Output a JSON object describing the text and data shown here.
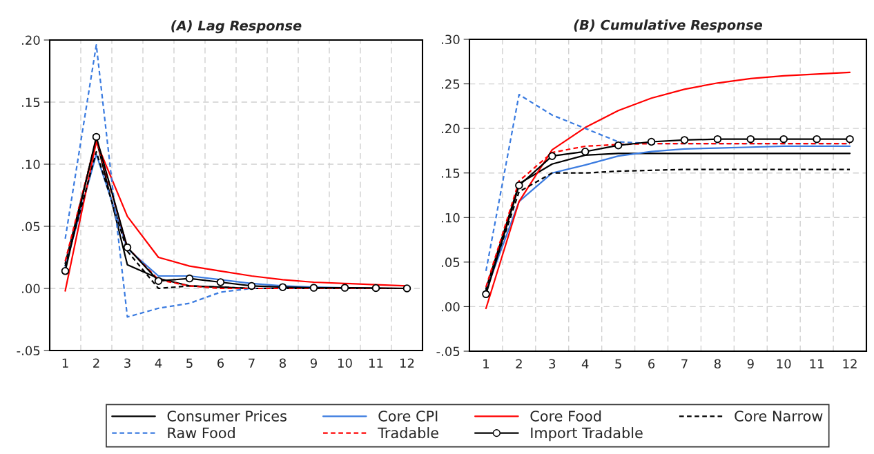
{
  "chart_data": [
    {
      "type": "line",
      "title": "(A) Lag Response",
      "categories": [
        "1",
        "2",
        "3",
        "4",
        "5",
        "6",
        "7",
        "8",
        "9",
        "10",
        "11",
        "12"
      ],
      "ylim": [
        -0.05,
        0.2
      ],
      "yticks": [
        {
          "value": -0.05,
          "label": "-.05"
        },
        {
          "value": 0.0,
          "label": ".00"
        },
        {
          "value": 0.05,
          "label": ".05"
        },
        {
          "value": 0.1,
          "label": ".10"
        },
        {
          "value": 0.15,
          "label": ".15"
        },
        {
          "value": 0.2,
          "label": ".20"
        }
      ],
      "grid": true,
      "legend": "bottom",
      "series": [
        {
          "name": "Consumer Prices",
          "color": "#000000",
          "line_style": "solid",
          "marker": "none",
          "values": [
            0.02,
            0.12,
            0.019,
            0.008,
            0.002,
            0.001,
            0.0,
            0.0,
            0.0,
            0.0,
            0.0,
            0.0
          ]
        },
        {
          "name": "Core CPI",
          "color": "#3a7be0",
          "line_style": "solid",
          "marker": "none",
          "values": [
            0.018,
            0.108,
            0.032,
            0.01,
            0.01,
            0.007,
            0.004,
            0.002,
            0.001,
            0.0005,
            0.0,
            0.0
          ]
        },
        {
          "name": "Core Food",
          "color": "#ff0000",
          "line_style": "solid",
          "marker": "none",
          "values": [
            -0.002,
            0.118,
            0.058,
            0.025,
            0.018,
            0.014,
            0.01,
            0.007,
            0.005,
            0.004,
            0.003,
            0.002
          ]
        },
        {
          "name": "Core Narrow",
          "color": "#000000",
          "line_style": "dashed",
          "marker": "none",
          "values": [
            0.018,
            0.11,
            0.03,
            0.0,
            0.002,
            0.001,
            0.0,
            0.0,
            0.0,
            0.0,
            0.0,
            0.0
          ]
        },
        {
          "name": "Raw Food",
          "color": "#3a7be0",
          "line_style": "dashed",
          "marker": "none",
          "values": [
            0.04,
            0.196,
            -0.023,
            -0.016,
            -0.012,
            -0.003,
            0.0,
            0.0,
            0.0,
            0.0,
            0.0,
            0.0
          ]
        },
        {
          "name": "Tradable",
          "color": "#ff0000",
          "line_style": "dashed",
          "marker": "none",
          "values": [
            0.022,
            0.12,
            0.033,
            0.007,
            0.002,
            0.0,
            0.0,
            0.0,
            0.0,
            0.0,
            0.0,
            0.0
          ]
        },
        {
          "name": "Import Tradable",
          "color": "#000000",
          "line_style": "solid",
          "marker": "circle",
          "values": [
            0.014,
            0.122,
            0.033,
            0.006,
            0.008,
            0.005,
            0.002,
            0.001,
            0.0005,
            0.0005,
            0.0003,
            0.0
          ]
        }
      ]
    },
    {
      "type": "line",
      "title": "(B) Cumulative Response",
      "categories": [
        "1",
        "2",
        "3",
        "4",
        "5",
        "6",
        "7",
        "8",
        "9",
        "10",
        "11",
        "12"
      ],
      "ylim": [
        -0.05,
        0.3
      ],
      "yticks": [
        {
          "value": -0.05,
          "label": "-.05"
        },
        {
          "value": 0.0,
          "label": ".00"
        },
        {
          "value": 0.05,
          "label": ".05"
        },
        {
          "value": 0.1,
          "label": ".10"
        },
        {
          "value": 0.15,
          "label": ".15"
        },
        {
          "value": 0.2,
          "label": ".20"
        },
        {
          "value": 0.25,
          "label": ".25"
        },
        {
          "value": 0.3,
          "label": ".30"
        }
      ],
      "grid": true,
      "legend": "bottom",
      "series": [
        {
          "name": "Consumer Prices",
          "color": "#000000",
          "line_style": "solid",
          "marker": "none",
          "values": [
            0.02,
            0.138,
            0.16,
            0.17,
            0.172,
            0.172,
            0.172,
            0.172,
            0.172,
            0.172,
            0.172,
            0.172
          ]
        },
        {
          "name": "Core CPI",
          "color": "#3a7be0",
          "line_style": "solid",
          "marker": "none",
          "values": [
            0.018,
            0.118,
            0.15,
            0.159,
            0.169,
            0.174,
            0.177,
            0.178,
            0.179,
            0.18,
            0.18,
            0.18
          ]
        },
        {
          "name": "Core Food",
          "color": "#ff0000",
          "line_style": "solid",
          "marker": "none",
          "values": [
            -0.002,
            0.118,
            0.176,
            0.201,
            0.22,
            0.234,
            0.244,
            0.251,
            0.256,
            0.259,
            0.261,
            0.263
          ]
        },
        {
          "name": "Core Narrow",
          "color": "#000000",
          "line_style": "dashed",
          "marker": "none",
          "values": [
            0.018,
            0.129,
            0.15,
            0.15,
            0.152,
            0.153,
            0.154,
            0.154,
            0.154,
            0.154,
            0.154,
            0.154
          ]
        },
        {
          "name": "Raw Food",
          "color": "#3a7be0",
          "line_style": "dashed",
          "marker": "none",
          "values": [
            0.04,
            0.238,
            0.215,
            0.2,
            0.185,
            0.183,
            0.183,
            0.183,
            0.183,
            0.183,
            0.183,
            0.183
          ]
        },
        {
          "name": "Tradable",
          "color": "#ff0000",
          "line_style": "dashed",
          "marker": "none",
          "values": [
            0.022,
            0.141,
            0.173,
            0.18,
            0.182,
            0.183,
            0.183,
            0.183,
            0.183,
            0.183,
            0.183,
            0.183
          ]
        },
        {
          "name": "Import Tradable",
          "color": "#000000",
          "line_style": "solid",
          "marker": "circle",
          "values": [
            0.014,
            0.136,
            0.169,
            0.174,
            0.181,
            0.185,
            0.187,
            0.188,
            0.188,
            0.188,
            0.188,
            0.188
          ]
        }
      ]
    }
  ]
}
